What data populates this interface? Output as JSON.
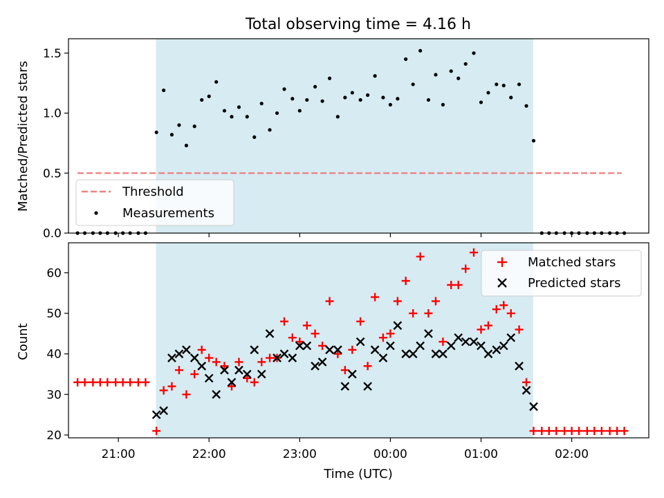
{
  "chart_data": [
    {
      "type": "scatter",
      "title": "Total observing time = 4.16 h",
      "xlabel": "",
      "ylabel": "Matched/Predicted stars",
      "ylim": [
        0,
        1.62
      ],
      "yticks": [
        "0.0",
        "0.5",
        "1.0",
        "1.5"
      ],
      "ytick_values": [
        0,
        0.5,
        1.0,
        1.5
      ],
      "x_range_hours": [
        20.45,
        26.85
      ],
      "shaded_span_hours": [
        21.415,
        25.575
      ],
      "shaded_color": "#add8e6",
      "threshold": {
        "name": "Threshold",
        "value": 0.5,
        "x_hours": [
          20.55,
          26.55
        ],
        "color": "#f08080"
      },
      "legend": {
        "placement": "lower-left",
        "entries": [
          "Threshold",
          "Measurements"
        ]
      },
      "series": [
        {
          "name": "Measurements",
          "color": "#000000",
          "x_hours": [
            20.55,
            20.63,
            20.72,
            20.8,
            20.88,
            20.97,
            21.05,
            21.13,
            21.22,
            21.3,
            21.42,
            21.5,
            21.59,
            21.67,
            21.75,
            21.84,
            21.92,
            22.0,
            22.08,
            22.17,
            22.25,
            22.33,
            22.42,
            22.5,
            22.58,
            22.67,
            22.75,
            22.83,
            22.92,
            23.0,
            23.08,
            23.17,
            23.25,
            23.33,
            23.42,
            23.5,
            23.58,
            23.67,
            23.75,
            23.83,
            23.92,
            24.0,
            24.08,
            24.17,
            24.25,
            24.33,
            24.42,
            24.5,
            24.58,
            24.67,
            24.75,
            24.83,
            24.92,
            25.0,
            25.08,
            25.17,
            25.25,
            25.33,
            25.42,
            25.5,
            25.58,
            25.67,
            25.75,
            25.83,
            25.92,
            26.0,
            26.08,
            26.17,
            26.25,
            26.33,
            26.42,
            26.5,
            26.58
          ],
          "values": [
            0,
            0,
            0,
            0,
            0,
            0,
            0,
            0,
            0,
            0,
            0.84,
            1.19,
            0.82,
            0.9,
            0.73,
            0.89,
            1.11,
            1.14,
            1.26,
            1.02,
            0.97,
            1.05,
            0.97,
            0.8,
            1.08,
            0.86,
            1.0,
            1.2,
            1.12,
            1.02,
            1.11,
            1.22,
            1.1,
            1.29,
            0.97,
            1.13,
            1.17,
            1.11,
            1.15,
            1.31,
            1.13,
            1.07,
            1.12,
            1.45,
            1.24,
            1.52,
            1.11,
            1.32,
            1.07,
            1.35,
            1.29,
            1.41,
            1.5,
            1.09,
            1.17,
            1.24,
            1.23,
            1.13,
            1.24,
            1.06,
            0.77,
            0,
            0,
            0,
            0,
            0,
            0,
            0,
            0,
            0,
            0,
            0,
            0
          ]
        }
      ]
    },
    {
      "type": "scatter",
      "title": "",
      "xlabel": "Time (UTC)",
      "ylabel": "Count",
      "ylim": [
        19.3,
        67.4
      ],
      "yticks": [
        "20",
        "30",
        "40",
        "50",
        "60"
      ],
      "ytick_values": [
        20,
        30,
        40,
        50,
        60
      ],
      "xticks": [
        "21:00",
        "22:00",
        "23:00",
        "00:00",
        "01:00",
        "02:00"
      ],
      "xtick_hours": [
        21,
        22,
        23,
        24,
        25,
        26
      ],
      "x_range_hours": [
        20.45,
        26.85
      ],
      "shaded_span_hours": [
        21.415,
        25.575
      ],
      "shaded_color": "#add8e6",
      "legend": {
        "placement": "top-right",
        "entries": [
          "Matched stars",
          "Predicted stars"
        ]
      },
      "series": [
        {
          "name": "Matched stars",
          "marker": "plus",
          "color": "#ff0000",
          "x_hours": [
            20.55,
            20.63,
            20.72,
            20.8,
            20.88,
            20.97,
            21.05,
            21.13,
            21.22,
            21.3,
            21.42,
            21.5,
            21.59,
            21.67,
            21.75,
            21.84,
            21.92,
            22.0,
            22.08,
            22.17,
            22.25,
            22.33,
            22.42,
            22.5,
            22.58,
            22.67,
            22.75,
            22.83,
            22.92,
            23.0,
            23.08,
            23.17,
            23.25,
            23.33,
            23.42,
            23.5,
            23.58,
            23.67,
            23.75,
            23.83,
            23.92,
            24.0,
            24.08,
            24.17,
            24.25,
            24.33,
            24.42,
            24.5,
            24.58,
            24.67,
            24.75,
            24.83,
            24.92,
            25.0,
            25.08,
            25.17,
            25.25,
            25.33,
            25.42,
            25.5,
            25.58,
            25.67,
            25.75,
            25.83,
            25.92,
            26.0,
            26.08,
            26.17,
            26.25,
            26.33,
            26.42,
            26.5,
            26.58
          ],
          "values": [
            33,
            33,
            33,
            33,
            33,
            33,
            33,
            33,
            33,
            33,
            21,
            31,
            32,
            36,
            30,
            35,
            41,
            39,
            38,
            37,
            32,
            38,
            34,
            33,
            38,
            39,
            39,
            48,
            44,
            43,
            47,
            45,
            42,
            53,
            40,
            36,
            41,
            48,
            37,
            54,
            44,
            45,
            53,
            58,
            50,
            64,
            50,
            53,
            43,
            57,
            57,
            61,
            65,
            46,
            47,
            51,
            52,
            50,
            46,
            33,
            21,
            21,
            21,
            21,
            21,
            21,
            21,
            21,
            21,
            21,
            21,
            21,
            21
          ]
        },
        {
          "name": "Predicted stars",
          "marker": "x",
          "color": "#000000",
          "x_hours": [
            21.42,
            21.5,
            21.59,
            21.67,
            21.75,
            21.84,
            21.92,
            22.0,
            22.08,
            22.17,
            22.25,
            22.33,
            22.42,
            22.5,
            22.58,
            22.67,
            22.75,
            22.83,
            22.92,
            23.0,
            23.08,
            23.17,
            23.25,
            23.33,
            23.42,
            23.5,
            23.58,
            23.67,
            23.75,
            23.83,
            23.92,
            24.0,
            24.08,
            24.17,
            24.25,
            24.33,
            24.42,
            24.5,
            24.58,
            24.67,
            24.75,
            24.83,
            24.92,
            25.0,
            25.08,
            25.17,
            25.25,
            25.33,
            25.42,
            25.5,
            25.58
          ],
          "values": [
            25,
            26,
            39,
            40,
            41,
            39,
            37,
            34,
            30,
            36,
            33,
            36,
            35,
            41,
            35,
            45,
            39,
            40,
            39,
            42,
            42,
            37,
            38,
            41,
            41,
            32,
            35,
            43,
            32,
            41,
            39,
            42,
            47,
            40,
            40,
            42,
            45,
            40,
            40,
            42,
            44,
            43,
            43,
            42,
            40,
            41,
            42,
            44,
            37,
            31,
            27
          ]
        }
      ]
    }
  ]
}
